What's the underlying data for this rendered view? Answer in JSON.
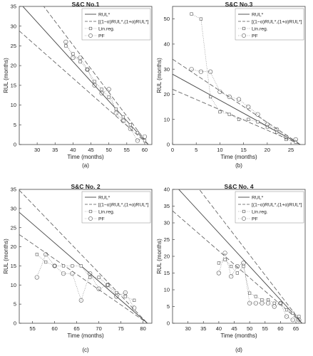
{
  "colors": {
    "background": "#ffffff",
    "ink": "#222222",
    "axis": "#444444",
    "marker": "#555555"
  },
  "legend_labels": {
    "rul": "RUL*",
    "bounds": "[(1−α)RUL*,(1+α)RUL*]",
    "linreg": "Lin.reg.",
    "pf": "PF"
  },
  "chart_data": [
    {
      "type": "line",
      "panel_label": "(a)",
      "title": "S&C No.1",
      "xlabel": "Time (months)",
      "ylabel": "RUL (months)",
      "xlim": [
        25,
        62
      ],
      "ylim": [
        0,
        35
      ],
      "xticks": [
        30,
        35,
        40,
        45,
        50,
        55,
        60
      ],
      "yticks": [
        0,
        5,
        10,
        15,
        20,
        25,
        30,
        35
      ],
      "legend": "top-right",
      "series": [
        {
          "name": "RUL*",
          "style": "solid",
          "x": [
            25,
            61
          ],
          "y": [
            36,
            0
          ]
        },
        {
          "name": "[(1−α)RUL*,(1+α)RUL*]",
          "style": "dashed",
          "x": [
            25,
            61
          ],
          "y": [
            43.2,
            0
          ]
        },
        {
          "name": "[(1−α)RUL*,(1+α)RUL*]",
          "style": "dashed",
          "x": [
            25,
            61
          ],
          "y": [
            28.8,
            0
          ]
        },
        {
          "name": "Lin.reg.",
          "style": "dotted-square",
          "x": [
            38,
            40,
            42,
            44,
            46,
            48,
            50,
            52,
            54,
            56,
            58,
            60
          ],
          "y": [
            25,
            23,
            21,
            19,
            16,
            14,
            12,
            9,
            7,
            5,
            3,
            1
          ]
        },
        {
          "name": "PF",
          "style": "dotted-circle",
          "x": [
            38,
            40,
            42,
            44,
            46,
            48,
            50,
            52,
            54,
            56,
            58,
            60
          ],
          "y": [
            26,
            22,
            22,
            19,
            15,
            13,
            14,
            8,
            6,
            4,
            1,
            2
          ]
        }
      ]
    },
    {
      "type": "line",
      "panel_label": "(b)",
      "title": "S&C No.3",
      "xlabel": "Time (months)",
      "ylabel": "RUL (months)",
      "xlim": [
        0,
        28
      ],
      "ylim": [
        0,
        55
      ],
      "xticks": [
        0,
        5,
        10,
        15,
        20,
        25
      ],
      "yticks": [
        0,
        10,
        20,
        30,
        40,
        50
      ],
      "legend": "top-right",
      "series": [
        {
          "name": "RUL*",
          "style": "solid",
          "x": [
            0,
            27
          ],
          "y": [
            28,
            0
          ]
        },
        {
          "name": "[(1−α)RUL*,(1+α)RUL*]",
          "style": "dashed",
          "x": [
            0,
            27
          ],
          "y": [
            34,
            0
          ]
        },
        {
          "name": "[(1−α)RUL*,(1+α)RUL*]",
          "style": "dashed",
          "x": [
            0,
            27
          ],
          "y": [
            22,
            0
          ]
        },
        {
          "name": "Lin.reg.",
          "style": "dotted-square",
          "x": [
            4,
            6,
            8,
            10,
            12,
            14,
            16,
            18,
            20,
            22,
            24,
            26
          ],
          "y": [
            52,
            50,
            19,
            13,
            12,
            10,
            10,
            9,
            7,
            5,
            2,
            1
          ]
        },
        {
          "name": "PF",
          "style": "dotted-circle",
          "x": [
            4,
            6,
            8,
            10,
            12,
            14,
            16,
            18,
            20,
            22,
            24,
            26
          ],
          "y": [
            30,
            29,
            29,
            21,
            19,
            18,
            15,
            12,
            8,
            6,
            3,
            2
          ]
        }
      ]
    },
    {
      "type": "line",
      "panel_label": "(c)",
      "title": "S&C No. 2",
      "xlabel": "Time (months)",
      "ylabel": "RUL (months)",
      "xlim": [
        52,
        82
      ],
      "ylim": [
        0,
        35
      ],
      "xticks": [
        55,
        60,
        65,
        70,
        75,
        80
      ],
      "yticks": [
        0,
        5,
        10,
        15,
        20,
        25,
        30,
        35
      ],
      "legend": "top-right",
      "series": [
        {
          "name": "RUL*",
          "style": "solid",
          "x": [
            52,
            81
          ],
          "y": [
            29,
            0
          ]
        },
        {
          "name": "[(1−α)RUL*,(1+α)RUL*]",
          "style": "dashed",
          "x": [
            52,
            81
          ],
          "y": [
            34.8,
            0
          ]
        },
        {
          "name": "[(1−α)RUL*,(1+α)RUL*]",
          "style": "dashed",
          "x": [
            52,
            81
          ],
          "y": [
            23.2,
            0
          ]
        },
        {
          "name": "Lin.reg.",
          "style": "dotted-square",
          "x": [
            56,
            58,
            60,
            62,
            64,
            66,
            68,
            70,
            72,
            74,
            76,
            78
          ],
          "y": [
            18,
            16,
            15,
            15,
            15,
            15,
            12,
            12,
            10,
            8,
            7,
            6
          ]
        },
        {
          "name": "PF",
          "style": "dotted-circle",
          "x": [
            56,
            58,
            60,
            62,
            64,
            66,
            68,
            70,
            72,
            74,
            76,
            78
          ],
          "y": [
            12,
            18,
            15,
            13,
            13,
            6,
            13,
            9,
            10,
            7,
            8,
            4
          ]
        }
      ]
    },
    {
      "type": "line",
      "panel_label": "(d)",
      "title": "S&C No. 4",
      "xlabel": "Time (months)",
      "ylabel": "RUL (months)",
      "xlim": [
        25,
        68
      ],
      "ylim": [
        0,
        40
      ],
      "xticks": [
        30,
        35,
        40,
        45,
        50,
        55,
        60,
        65
      ],
      "yticks": [
        0,
        5,
        10,
        15,
        20,
        25,
        30,
        35,
        40
      ],
      "legend": "top-right",
      "series": [
        {
          "name": "RUL*",
          "style": "solid",
          "x": [
            25,
            67
          ],
          "y": [
            42,
            0
          ]
        },
        {
          "name": "[(1−α)RUL*,(1+α)RUL*]",
          "style": "dashed",
          "x": [
            25,
            67
          ],
          "y": [
            50.4,
            0
          ]
        },
        {
          "name": "[(1−α)RUL*,(1+α)RUL*]",
          "style": "dashed",
          "x": [
            25,
            67
          ],
          "y": [
            33.6,
            0
          ]
        },
        {
          "name": "Lin.reg.",
          "style": "dotted-square",
          "x": [
            40,
            42,
            44,
            46,
            48,
            50,
            52,
            54,
            56,
            58,
            60,
            62,
            64,
            66
          ],
          "y": [
            18,
            19,
            17,
            15,
            17,
            9,
            8,
            7,
            7,
            6,
            6,
            4,
            3,
            2
          ]
        },
        {
          "name": "PF",
          "style": "dotted-circle",
          "x": [
            40,
            42,
            44,
            46,
            48,
            50,
            52,
            54,
            56,
            58,
            60,
            62,
            64,
            66
          ],
          "y": [
            15,
            21,
            14,
            17,
            18,
            6,
            6,
            6,
            6,
            5,
            6,
            2,
            1,
            1
          ]
        }
      ]
    }
  ]
}
